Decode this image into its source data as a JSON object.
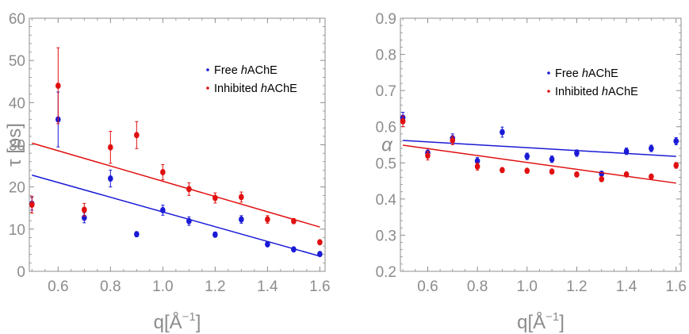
{
  "colors": {
    "free": "#1a1ad6",
    "inhibited": "#e01010",
    "axis": "#8c8c8c"
  },
  "chart_data": [
    {
      "type": "scatter",
      "title": "",
      "xlabel_main": "q[Å",
      "xlabel_sup": "−1",
      "xlabel_close": "]",
      "ylabel": "τ [ps]",
      "xlim": [
        0.49,
        1.62
      ],
      "ylim": [
        0,
        60
      ],
      "xticks": [
        0.6,
        0.8,
        1.0,
        1.2,
        1.4,
        1.6
      ],
      "xtick_labels": [
        "0.6",
        "0.8",
        "1.0",
        "1.2",
        "1.4",
        "1.6"
      ],
      "yticks": [
        0,
        10,
        20,
        30,
        40,
        50,
        60
      ],
      "ytick_labels": [
        "0",
        "10",
        "20",
        "30",
        "40",
        "50",
        "60"
      ],
      "legend_placement": "top-right",
      "series": [
        {
          "name_pre": "Free ",
          "name_ital": "h",
          "name_post": "AChE",
          "color_key": "free",
          "x": [
            0.5,
            0.6,
            0.7,
            0.8,
            0.9,
            1.0,
            1.1,
            1.2,
            1.3,
            1.4,
            1.5,
            1.6
          ],
          "y": [
            16.0,
            36.0,
            12.7,
            22.0,
            8.8,
            14.5,
            11.9,
            8.7,
            12.3,
            6.4,
            5.2,
            4.1
          ],
          "err": [
            1.5,
            6.5,
            1.2,
            2.0,
            0.6,
            1.2,
            1.0,
            0.6,
            0.9,
            0.5,
            0.5,
            0.5
          ],
          "fit": [
            [
              0.5,
              22.8
            ],
            [
              1.6,
              3.6
            ]
          ]
        },
        {
          "name_pre": "Inhibited ",
          "name_ital": "h",
          "name_post": "AChE",
          "color_key": "inhibited",
          "x": [
            0.5,
            0.6,
            0.7,
            0.8,
            0.9,
            1.0,
            1.1,
            1.2,
            1.3,
            1.4,
            1.5,
            1.6
          ],
          "y": [
            15.8,
            44.0,
            14.6,
            29.4,
            32.3,
            23.5,
            19.5,
            17.4,
            17.6,
            12.3,
            11.9,
            6.9
          ],
          "err": [
            2.0,
            9.0,
            1.5,
            3.8,
            3.2,
            1.8,
            1.5,
            1.2,
            1.2,
            0.9,
            0.6,
            0.5
          ],
          "fit": [
            [
              0.5,
              30.4
            ],
            [
              1.6,
              10.5
            ]
          ]
        }
      ]
    },
    {
      "type": "scatter",
      "title": "",
      "xlabel_main": "q[Å",
      "xlabel_sup": "−1",
      "xlabel_close": "]",
      "ylabel": "α",
      "xlim": [
        0.49,
        1.62
      ],
      "ylim": [
        0.2,
        0.9
      ],
      "xticks": [
        0.6,
        0.8,
        1.0,
        1.2,
        1.4,
        1.6
      ],
      "xtick_labels": [
        "0.6",
        "0.8",
        "1.0",
        "1.2",
        "1.4",
        "1.6"
      ],
      "yticks": [
        0.2,
        0.3,
        0.4,
        0.5,
        0.6,
        0.7,
        0.8,
        0.9
      ],
      "ytick_labels": [
        "0.2",
        "0.3",
        "0.4",
        "0.5",
        "0.6",
        "0.7",
        "0.8",
        "0.9"
      ],
      "legend_placement": "top-right",
      "series": [
        {
          "name_pre": "Free ",
          "name_ital": "h",
          "name_post": "AChE",
          "color_key": "free",
          "x": [
            0.5,
            0.6,
            0.7,
            0.8,
            0.9,
            1.0,
            1.1,
            1.2,
            1.3,
            1.4,
            1.5,
            1.6
          ],
          "y": [
            0.625,
            0.528,
            0.568,
            0.505,
            0.585,
            0.518,
            0.51,
            0.527,
            0.47,
            0.532,
            0.54,
            0.56
          ],
          "err": [
            0.015,
            0.012,
            0.012,
            0.01,
            0.014,
            0.009,
            0.009,
            0.009,
            0.006,
            0.009,
            0.009,
            0.01
          ],
          "fit": [
            [
              0.5,
              0.562
            ],
            [
              1.6,
              0.518
            ]
          ]
        },
        {
          "name_pre": "Inhibited ",
          "name_ital": "h",
          "name_post": "AChE",
          "color_key": "inhibited",
          "x": [
            0.5,
            0.6,
            0.7,
            0.8,
            0.9,
            1.0,
            1.1,
            1.2,
            1.3,
            1.4,
            1.5,
            1.6
          ],
          "y": [
            0.615,
            0.52,
            0.562,
            0.49,
            0.48,
            0.478,
            0.476,
            0.468,
            0.455,
            0.468,
            0.462,
            0.493
          ],
          "err": [
            0.015,
            0.012,
            0.012,
            0.01,
            0.005,
            0.005,
            0.005,
            0.005,
            0.005,
            0.005,
            0.005,
            0.008
          ],
          "fit": [
            [
              0.5,
              0.549
            ],
            [
              1.6,
              0.444
            ]
          ]
        }
      ]
    }
  ]
}
